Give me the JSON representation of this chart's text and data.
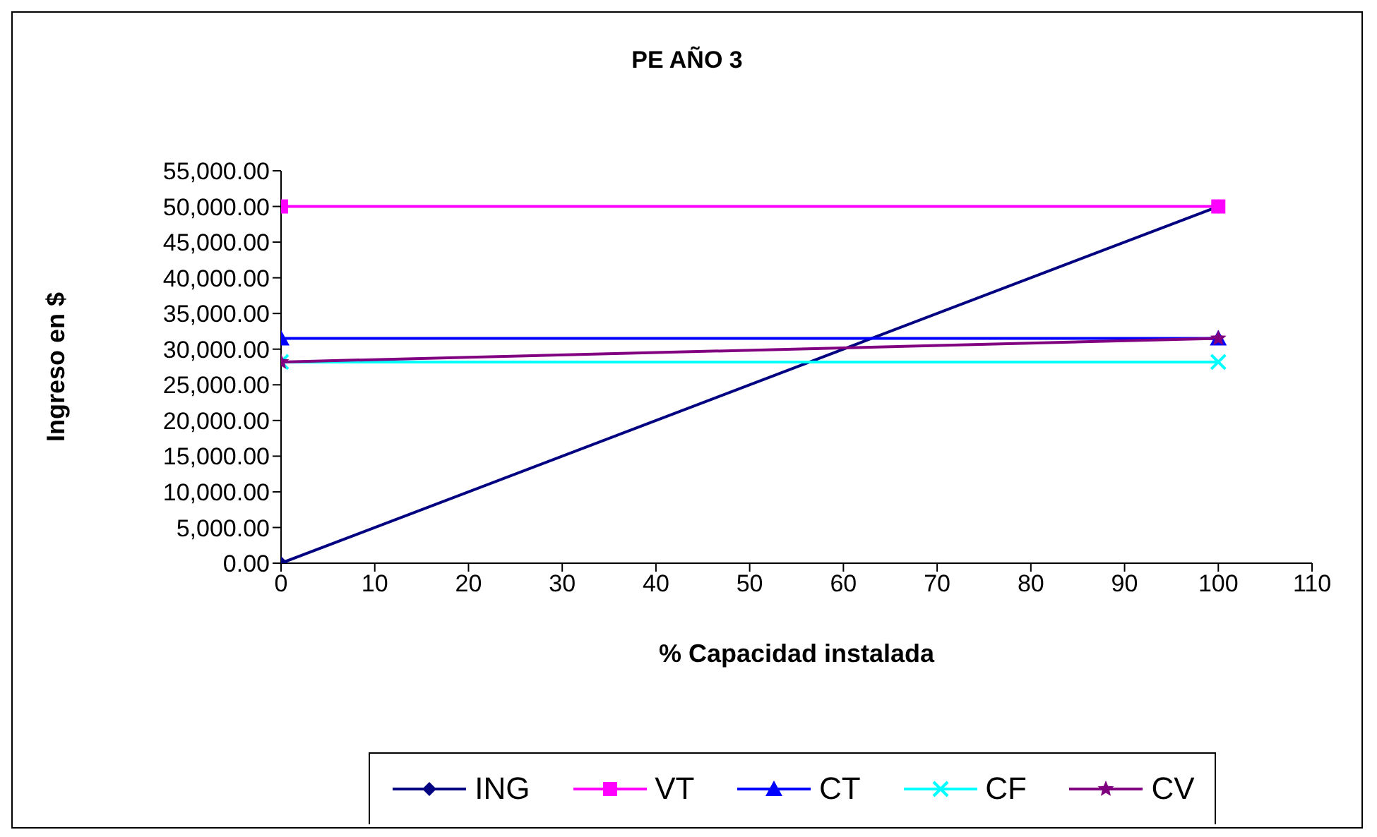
{
  "chart_data": {
    "type": "line",
    "title": "PE AÑO 3",
    "xlabel": "% Capacidad instalada",
    "ylabel": "Ingreso en $",
    "x": [
      0,
      100
    ],
    "series": [
      {
        "name": "ING",
        "color": "#000080",
        "values": [
          0,
          50000
        ],
        "marker": "diamond"
      },
      {
        "name": "VT",
        "color": "#ff00ff",
        "values": [
          50000,
          50000
        ],
        "marker": "square"
      },
      {
        "name": "CT",
        "color": "#0000ff",
        "values": [
          31500,
          31500
        ],
        "marker": "triangle"
      },
      {
        "name": "CF",
        "color": "#00ffff",
        "values": [
          28200,
          28200
        ],
        "marker": "cross"
      },
      {
        "name": "CV",
        "color": "#800080",
        "values": [
          28200,
          31500
        ],
        "marker": "star"
      }
    ],
    "xlim": [
      0,
      110
    ],
    "xticks": [
      0,
      10,
      20,
      30,
      40,
      50,
      60,
      70,
      80,
      90,
      100,
      110
    ],
    "ylim": [
      0,
      55000
    ],
    "yticks": [
      {
        "value": 0,
        "label": "0.00"
      },
      {
        "value": 5000,
        "label": "5,000.00"
      },
      {
        "value": 10000,
        "label": "10,000.00"
      },
      {
        "value": 15000,
        "label": "15,000.00"
      },
      {
        "value": 20000,
        "label": "20,000.00"
      },
      {
        "value": 25000,
        "label": "25,000.00"
      },
      {
        "value": 30000,
        "label": "30,000.00"
      },
      {
        "value": 35000,
        "label": "35,000.00"
      },
      {
        "value": 40000,
        "label": "40,000.00"
      },
      {
        "value": 45000,
        "label": "45,000.00"
      },
      {
        "value": 50000,
        "label": "50,000.00"
      },
      {
        "value": 55000,
        "label": "55,000.00"
      }
    ],
    "grid": false,
    "legend": "bottom",
    "line_style": "solid"
  }
}
